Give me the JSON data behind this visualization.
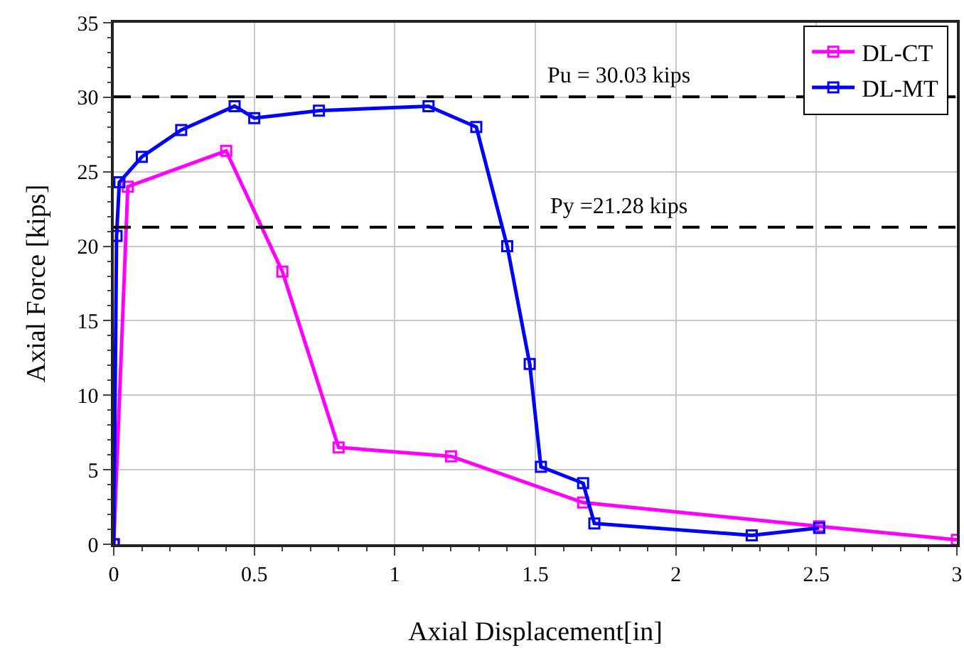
{
  "chart_data": {
    "type": "line",
    "xlabel": "Axial Displacement[in]",
    "ylabel": "Axial Force [kips]",
    "xlim": [
      0,
      3
    ],
    "xticks": [
      0,
      0.5,
      1,
      1.5,
      2,
      2.5,
      3
    ],
    "ylim": [
      0,
      35
    ],
    "yticks": [
      0,
      5,
      10,
      15,
      20,
      25,
      30,
      35
    ],
    "grid": true,
    "legend": "top right",
    "marker": "square",
    "line_style": "solid",
    "series": [
      {
        "name": "DL-CT",
        "color": "#ff00ff",
        "x": [
          0,
          0.05,
          0.4,
          0.6,
          0.8,
          1.2,
          1.67,
          2.51,
          3.0
        ],
        "values": [
          0,
          24,
          26.4,
          18.3,
          6.5,
          5.9,
          2.8,
          1.2,
          0.3
        ]
      },
      {
        "name": "DL-MT",
        "color": "#0000ff",
        "x": [
          0,
          0.01,
          0.02,
          0.1,
          0.24,
          0.43,
          0.5,
          0.73,
          1.12,
          1.29,
          1.4,
          1.48,
          1.52,
          1.67,
          1.71,
          2.27,
          2.51
        ],
        "values": [
          0,
          20.7,
          24.3,
          26,
          27.8,
          29.4,
          28.6,
          29.1,
          29.4,
          28,
          20,
          12.1,
          5.2,
          4.1,
          1.4,
          0.6,
          1.1
        ]
      }
    ],
    "ref_lines": [
      {
        "axis": "y",
        "value": 30.03,
        "label": "Pu = 30.03 kips",
        "color": "#000000",
        "line_style": "dashed"
      },
      {
        "axis": "y",
        "value": 21.28,
        "label": "Py =21.28 kips",
        "color": "#000000",
        "line_style": "dashed"
      }
    ]
  }
}
